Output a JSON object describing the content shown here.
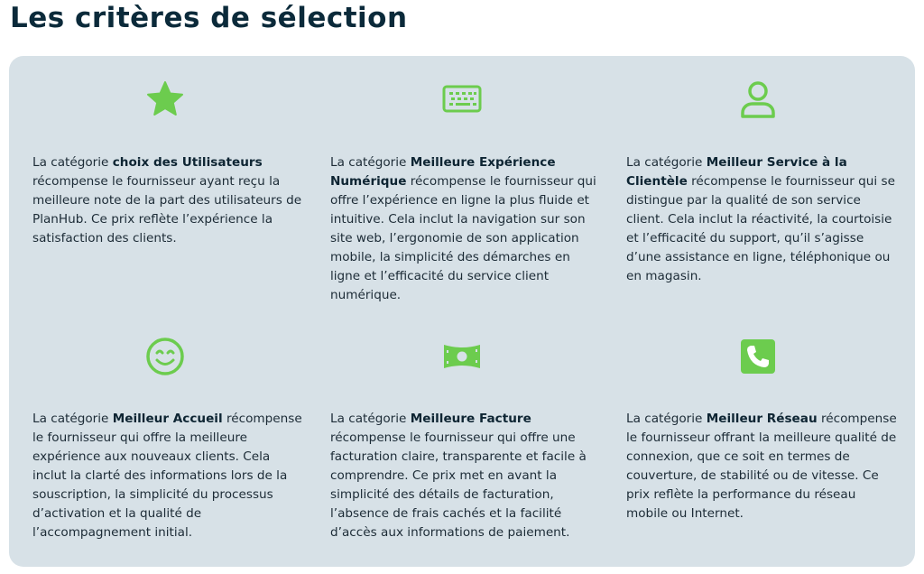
{
  "title": "Les critères de sélection",
  "accent_color": "#6ccc4e",
  "cards": [
    {
      "icon": "star-icon",
      "intro": "La catégorie ",
      "bold": "choix des Utilisateurs",
      "rest": " récompense le fournisseur ayant reçu la meilleure note de la part des utilisateurs de PlanHub. Ce prix reflète l’expérience la satisfaction des clients."
    },
    {
      "icon": "keyboard-icon",
      "intro": "La catégorie ",
      "bold": "Meilleure Expérience Numérique",
      "rest": " récompense le fournisseur qui offre l’expérience en ligne la plus fluide et intuitive. Cela inclut la navigation sur son site web, l’ergonomie de son application mobile, la simplicité des démarches en ligne et l’efficacité du service client numérique."
    },
    {
      "icon": "user-icon",
      "intro": "La catégorie ",
      "bold": "Meilleur Service à la Clientèle",
      "rest": " récompense le fournisseur qui se distingue par la qualité de son service client. Cela inclut la réactivité, la courtoisie et l’efficacité du support, qu’il s’agisse d’une assistance en ligne, téléphonique ou en magasin."
    },
    {
      "icon": "smile-icon",
      "intro": "La catégorie ",
      "bold": "Meilleur Accueil",
      "rest": " récompense le fournisseur qui offre la meilleure expérience aux nouveaux clients. Cela inclut la clarté des informations lors de la souscription, la simplicité du processus d’activation et la qualité de l’accompagnement initial."
    },
    {
      "icon": "money-bill-icon",
      "intro": "La catégorie ",
      "bold": "Meilleure Facture",
      "rest": " récompense le fournisseur qui offre une facturation claire, transparente et facile à comprendre. Ce prix met en avant la simplicité des détails de facturation, l’absence de frais cachés et la facilité d’accès aux informations de paiement."
    },
    {
      "icon": "phone-icon",
      "intro": "La catégorie ",
      "bold": "Meilleur Réseau",
      "rest": " récompense le fournisseur offrant la meilleure qualité de connexion, que ce soit en termes de couverture, de stabilité ou de vitesse. Ce prix reflète la performance du réseau mobile ou Internet."
    }
  ]
}
